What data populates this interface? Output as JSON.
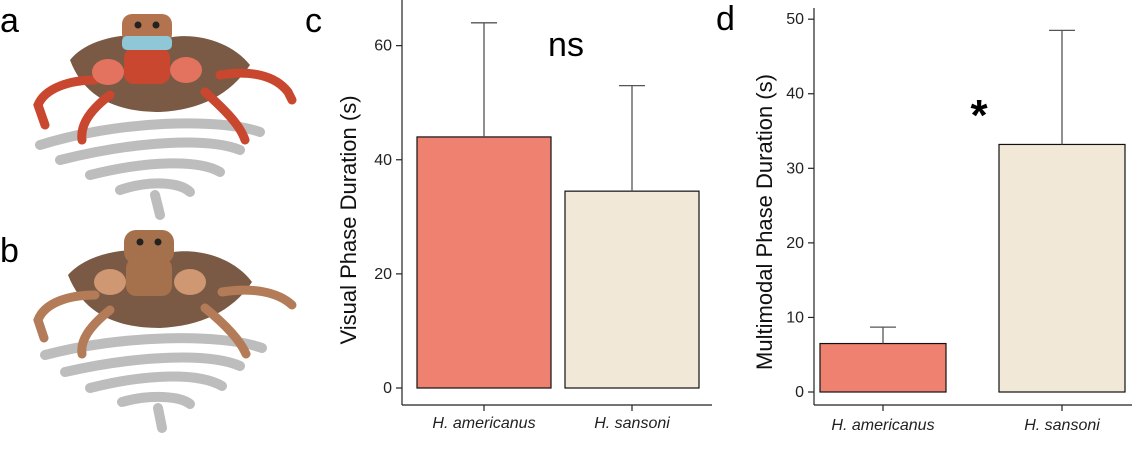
{
  "panels": {
    "a": "a",
    "b": "b",
    "c": "c",
    "d": "d"
  },
  "illustration": {
    "a_colors": {
      "body": "#d9563f",
      "head": "#b4734f",
      "band": "#8fc7d6",
      "shadow": "#bdbdbd"
    },
    "b_colors": {
      "body": "#b47b58",
      "head": "#a5704c",
      "shadow": "#bdbdbd"
    }
  },
  "chart_data": [
    {
      "type": "bar",
      "panel": "c",
      "categories": [
        "H. americanus",
        "H. sansoni"
      ],
      "values": [
        44,
        34.5
      ],
      "error_upper": [
        64,
        53
      ],
      "colors": [
        "#ee8170",
        "#f1e8d8"
      ],
      "ylabel": "Visual Phase Duration (s)",
      "yticks": [
        0,
        20,
        40,
        60
      ],
      "ylim": [
        0,
        68
      ],
      "annotation": "ns"
    },
    {
      "type": "bar",
      "panel": "d",
      "categories": [
        "H. americanus",
        "H. sansoni"
      ],
      "values": [
        6.5,
        33.2
      ],
      "error_upper": [
        8.7,
        48.5
      ],
      "colors": [
        "#ee8170",
        "#f1e8d8"
      ],
      "ylabel": "Multimodal Phase Duration (s)",
      "yticks": [
        0,
        10,
        20,
        30,
        40,
        50
      ],
      "ylim": [
        0,
        51.5
      ],
      "annotation": "*"
    }
  ]
}
